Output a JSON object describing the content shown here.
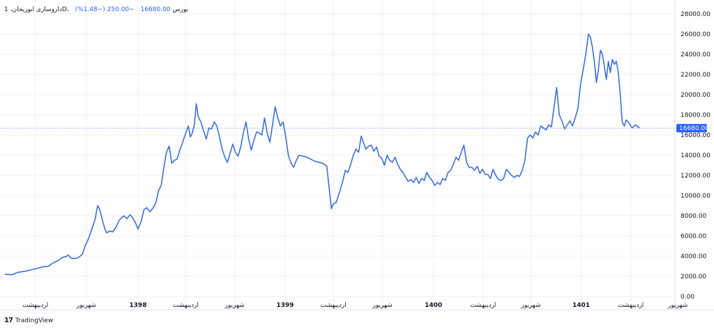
{
  "header": {
    "symbol": "داروسازی ابوریحان، 1D، بورس",
    "last_price": "16680.00",
    "change": "−250.00 (−1.48%)"
  },
  "branding": {
    "logo": "17",
    "name": "TradingView"
  },
  "colors": {
    "line": "#3a6fdb",
    "grid": "#eef0f3",
    "axis_text": "#131722",
    "label_bg": "#2962ff"
  },
  "chart_data": {
    "type": "line",
    "ylim": [
      0,
      28000
    ],
    "y_ticks": [
      0,
      2000,
      4000,
      6000,
      8000,
      10000,
      12000,
      14000,
      16000,
      18000,
      20000,
      22000,
      24000,
      26000,
      28000
    ],
    "y_tick_labels": [
      "0.00",
      "2000.00",
      "4000.00",
      "6000.00",
      "8000.00",
      "10000.00",
      "12000.00",
      "14000.00",
      "16000.00",
      "18000.00",
      "20000.00",
      "22000.00",
      "24000.00",
      "26000.00",
      "28000.00"
    ],
    "x_ticks": [
      {
        "label": "اردیبهشت",
        "t": 0.046,
        "bold": false
      },
      {
        "label": "شهریور",
        "t": 0.123,
        "bold": false
      },
      {
        "label": "1398",
        "t": 0.201,
        "bold": true
      },
      {
        "label": "اردیبهشت",
        "t": 0.273,
        "bold": false
      },
      {
        "label": "شهریور",
        "t": 0.347,
        "bold": false
      },
      {
        "label": "1399",
        "t": 0.423,
        "bold": true
      },
      {
        "label": "اردیبهشت",
        "t": 0.496,
        "bold": false
      },
      {
        "label": "شهریور",
        "t": 0.57,
        "bold": false
      },
      {
        "label": "1400",
        "t": 0.647,
        "bold": true
      },
      {
        "label": "اردیبهشت",
        "t": 0.722,
        "bold": false
      },
      {
        "label": "شهریور",
        "t": 0.794,
        "bold": false
      },
      {
        "label": "1401",
        "t": 0.87,
        "bold": true
      },
      {
        "label": "اردیبهشت",
        "t": 0.945,
        "bold": false
      },
      {
        "label": "شهریور",
        "t": 1.016,
        "bold": false
      }
    ],
    "last_value": 16680,
    "last_value_label": "16680.00",
    "series": [
      {
        "points": [
          [
            0.0,
            2200
          ],
          [
            0.01,
            2150
          ],
          [
            0.02,
            2400
          ],
          [
            0.03,
            2500
          ],
          [
            0.04,
            2650
          ],
          [
            0.05,
            2800
          ],
          [
            0.058,
            2950
          ],
          [
            0.066,
            3000
          ],
          [
            0.072,
            3300
          ],
          [
            0.08,
            3550
          ],
          [
            0.086,
            3850
          ],
          [
            0.092,
            3950
          ],
          [
            0.096,
            4100
          ],
          [
            0.1,
            3800
          ],
          [
            0.106,
            3750
          ],
          [
            0.112,
            3900
          ],
          [
            0.117,
            4200
          ],
          [
            0.121,
            5000
          ],
          [
            0.126,
            5700
          ],
          [
            0.131,
            6600
          ],
          [
            0.136,
            7600
          ],
          [
            0.14,
            9000
          ],
          [
            0.143,
            8700
          ],
          [
            0.147,
            7600
          ],
          [
            0.151,
            6700
          ],
          [
            0.154,
            6300
          ],
          [
            0.158,
            6500
          ],
          [
            0.163,
            6400
          ],
          [
            0.168,
            6900
          ],
          [
            0.172,
            7500
          ],
          [
            0.176,
            7800
          ],
          [
            0.18,
            8000
          ],
          [
            0.184,
            7700
          ],
          [
            0.189,
            8100
          ],
          [
            0.193,
            7800
          ],
          [
            0.197,
            7300
          ],
          [
            0.201,
            6700
          ],
          [
            0.206,
            7500
          ],
          [
            0.21,
            8600
          ],
          [
            0.214,
            8800
          ],
          [
            0.219,
            8400
          ],
          [
            0.224,
            8800
          ],
          [
            0.228,
            9300
          ],
          [
            0.232,
            10500
          ],
          [
            0.236,
            11000
          ],
          [
            0.24,
            12800
          ],
          [
            0.244,
            14300
          ],
          [
            0.248,
            14900
          ],
          [
            0.252,
            13200
          ],
          [
            0.256,
            13500
          ],
          [
            0.26,
            13600
          ],
          [
            0.264,
            14500
          ],
          [
            0.268,
            15200
          ],
          [
            0.273,
            16200
          ],
          [
            0.277,
            16900
          ],
          [
            0.28,
            15800
          ],
          [
            0.283,
            16200
          ],
          [
            0.286,
            17000
          ],
          [
            0.289,
            19100
          ],
          [
            0.292,
            17800
          ],
          [
            0.296,
            17300
          ],
          [
            0.3,
            16400
          ],
          [
            0.304,
            15600
          ],
          [
            0.308,
            16700
          ],
          [
            0.312,
            16600
          ],
          [
            0.316,
            17300
          ],
          [
            0.32,
            16900
          ],
          [
            0.324,
            15800
          ],
          [
            0.328,
            14600
          ],
          [
            0.332,
            13800
          ],
          [
            0.336,
            13300
          ],
          [
            0.34,
            14200
          ],
          [
            0.344,
            15100
          ],
          [
            0.348,
            14300
          ],
          [
            0.352,
            13900
          ],
          [
            0.356,
            14800
          ],
          [
            0.36,
            16200
          ],
          [
            0.364,
            17300
          ],
          [
            0.368,
            15600
          ],
          [
            0.372,
            14500
          ],
          [
            0.376,
            15500
          ],
          [
            0.38,
            16300
          ],
          [
            0.384,
            16200
          ],
          [
            0.388,
            16000
          ],
          [
            0.392,
            17700
          ],
          [
            0.396,
            16200
          ],
          [
            0.4,
            15300
          ],
          [
            0.404,
            17000
          ],
          [
            0.408,
            18800
          ],
          [
            0.412,
            17700
          ],
          [
            0.416,
            16900
          ],
          [
            0.42,
            17300
          ],
          [
            0.424,
            15800
          ],
          [
            0.428,
            14000
          ],
          [
            0.432,
            13200
          ],
          [
            0.436,
            12800
          ],
          [
            0.44,
            13500
          ],
          [
            0.444,
            14000
          ],
          [
            0.45,
            13900
          ],
          [
            0.456,
            13800
          ],
          [
            0.462,
            13600
          ],
          [
            0.468,
            13400
          ],
          [
            0.474,
            13300
          ],
          [
            0.48,
            13200
          ],
          [
            0.486,
            12900
          ],
          [
            0.49,
            10500
          ],
          [
            0.493,
            8700
          ],
          [
            0.496,
            9200
          ],
          [
            0.5,
            9300
          ],
          [
            0.505,
            10300
          ],
          [
            0.51,
            11400
          ],
          [
            0.514,
            12500
          ],
          [
            0.518,
            12300
          ],
          [
            0.522,
            13100
          ],
          [
            0.526,
            14000
          ],
          [
            0.53,
            14600
          ],
          [
            0.534,
            14300
          ],
          [
            0.538,
            15900
          ],
          [
            0.541,
            15300
          ],
          [
            0.545,
            14600
          ],
          [
            0.549,
            14900
          ],
          [
            0.553,
            15000
          ],
          [
            0.557,
            14400
          ],
          [
            0.561,
            14800
          ],
          [
            0.565,
            13900
          ],
          [
            0.569,
            13700
          ],
          [
            0.573,
            13000
          ],
          [
            0.577,
            14000
          ],
          [
            0.581,
            13500
          ],
          [
            0.585,
            13300
          ],
          [
            0.589,
            13800
          ],
          [
            0.593,
            13100
          ],
          [
            0.597,
            12600
          ],
          [
            0.601,
            12300
          ],
          [
            0.605,
            11800
          ],
          [
            0.609,
            11400
          ],
          [
            0.613,
            11600
          ],
          [
            0.617,
            11300
          ],
          [
            0.621,
            11800
          ],
          [
            0.625,
            11200
          ],
          [
            0.629,
            11700
          ],
          [
            0.633,
            11500
          ],
          [
            0.637,
            12300
          ],
          [
            0.641,
            11800
          ],
          [
            0.645,
            11500
          ],
          [
            0.649,
            11000
          ],
          [
            0.653,
            11300
          ],
          [
            0.657,
            11100
          ],
          [
            0.661,
            11700
          ],
          [
            0.665,
            11500
          ],
          [
            0.669,
            12300
          ],
          [
            0.673,
            12500
          ],
          [
            0.677,
            13100
          ],
          [
            0.681,
            13800
          ],
          [
            0.685,
            13500
          ],
          [
            0.689,
            14300
          ],
          [
            0.693,
            15000
          ],
          [
            0.697,
            13300
          ],
          [
            0.701,
            12800
          ],
          [
            0.705,
            12800
          ],
          [
            0.709,
            12500
          ],
          [
            0.713,
            12900
          ],
          [
            0.717,
            12200
          ],
          [
            0.721,
            12600
          ],
          [
            0.725,
            12100
          ],
          [
            0.729,
            12100
          ],
          [
            0.733,
            11700
          ],
          [
            0.737,
            12600
          ],
          [
            0.741,
            12000
          ],
          [
            0.745,
            11600
          ],
          [
            0.749,
            11500
          ],
          [
            0.753,
            11700
          ],
          [
            0.757,
            12600
          ],
          [
            0.761,
            12300
          ],
          [
            0.765,
            12000
          ],
          [
            0.769,
            11800
          ],
          [
            0.773,
            12000
          ],
          [
            0.777,
            11900
          ],
          [
            0.781,
            12500
          ],
          [
            0.785,
            13500
          ],
          [
            0.789,
            15700
          ],
          [
            0.793,
            16000
          ],
          [
            0.797,
            15700
          ],
          [
            0.801,
            16300
          ],
          [
            0.805,
            16000
          ],
          [
            0.809,
            16900
          ],
          [
            0.813,
            16700
          ],
          [
            0.817,
            16500
          ],
          [
            0.821,
            17000
          ],
          [
            0.825,
            16800
          ],
          [
            0.829,
            18700
          ],
          [
            0.833,
            20700
          ],
          [
            0.837,
            18000
          ],
          [
            0.841,
            17400
          ],
          [
            0.845,
            16600
          ],
          [
            0.849,
            17000
          ],
          [
            0.853,
            17400
          ],
          [
            0.857,
            16900
          ],
          [
            0.861,
            17700
          ],
          [
            0.865,
            18600
          ],
          [
            0.869,
            21000
          ],
          [
            0.873,
            22500
          ],
          [
            0.877,
            24000
          ],
          [
            0.881,
            26000
          ],
          [
            0.884,
            25700
          ],
          [
            0.887,
            24700
          ],
          [
            0.89,
            23200
          ],
          [
            0.893,
            21200
          ],
          [
            0.896,
            22500
          ],
          [
            0.899,
            24400
          ],
          [
            0.902,
            24000
          ],
          [
            0.905,
            22800
          ],
          [
            0.908,
            21500
          ],
          [
            0.911,
            23300
          ],
          [
            0.914,
            22200
          ],
          [
            0.917,
            23500
          ],
          [
            0.92,
            23000
          ],
          [
            0.923,
            23300
          ],
          [
            0.926,
            22200
          ],
          [
            0.929,
            20000
          ],
          [
            0.932,
            17300
          ],
          [
            0.935,
            16900
          ],
          [
            0.938,
            17500
          ],
          [
            0.941,
            17300
          ],
          [
            0.944,
            17000
          ],
          [
            0.947,
            16700
          ],
          [
            0.95,
            16900
          ],
          [
            0.953,
            17000
          ],
          [
            0.956,
            16800
          ],
          [
            0.958,
            16680
          ]
        ]
      }
    ]
  }
}
